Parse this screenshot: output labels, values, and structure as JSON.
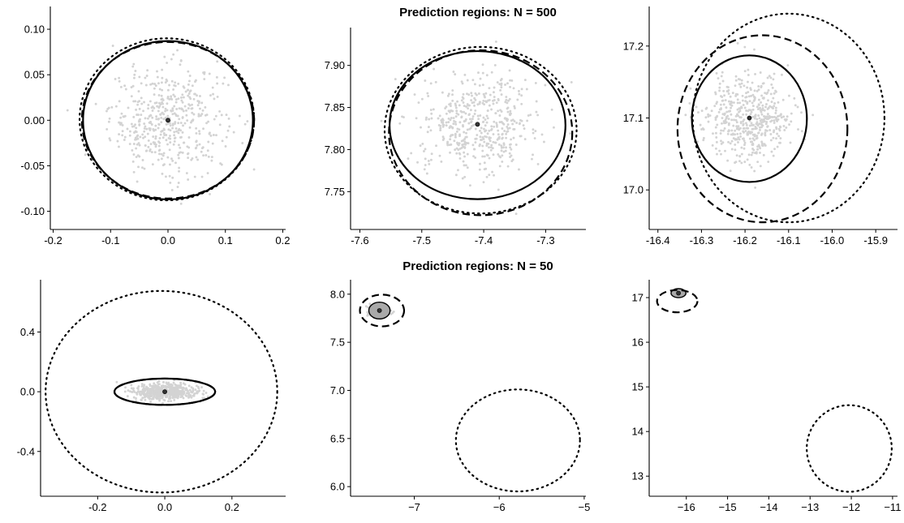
{
  "figure": {
    "background": "#ffffff",
    "point_color": "#d3d3d3",
    "center_color": "#333333",
    "line_color": "#000000"
  },
  "chart_data": [
    {
      "type": "scatter",
      "row": "N = 500",
      "title": "",
      "xlim": [
        -0.205,
        0.205
      ],
      "ylim": [
        -0.12,
        0.125
      ],
      "xticks": [
        -0.2,
        -0.1,
        0.0,
        0.1,
        0.2
      ],
      "xtick_labels": [
        "-0.2",
        "-0.1",
        "0.0",
        "0.1",
        "0.2"
      ],
      "yticks": [
        -0.1,
        -0.05,
        0.0,
        0.05,
        0.1
      ],
      "ytick_labels": [
        "-0.10",
        "-0.05",
        "0.00",
        "0.05",
        "0.10"
      ],
      "points": {
        "center": [
          0.0,
          0.0
        ],
        "sd": [
          0.05,
          0.03
        ],
        "n": 500,
        "color": "#d3d3d3"
      },
      "center": [
        0.0,
        0.0
      ],
      "regions": [
        {
          "style": "solid",
          "cx": 0.0,
          "cy": 0.0,
          "rx": 0.148,
          "ry": 0.087
        },
        {
          "style": "dashed",
          "cx": 0.0,
          "cy": 0.0,
          "rx": 0.15,
          "ry": 0.086
        },
        {
          "style": "dotted",
          "cx": -0.002,
          "cy": 0.001,
          "rx": 0.152,
          "ry": 0.089
        }
      ]
    },
    {
      "type": "scatter",
      "row": "N = 500",
      "title": "Prediction regions: N = 500",
      "xlim": [
        -7.615,
        -7.235
      ],
      "ylim": [
        7.705,
        7.945
      ],
      "xticks": [
        -7.6,
        -7.5,
        -7.4,
        -7.3
      ],
      "xtick_labels": [
        "-7.6",
        "-7.5",
        "-7.4",
        "-7.3"
      ],
      "yticks": [
        7.75,
        7.8,
        7.85,
        7.9
      ],
      "ytick_labels": [
        "7.75",
        "7.80",
        "7.85",
        "7.90"
      ],
      "points": {
        "center": [
          -7.41,
          7.83
        ],
        "sd": [
          0.05,
          0.03
        ],
        "n": 500,
        "color": "#d3d3d3"
      },
      "center": [
        -7.41,
        7.83
      ],
      "regions": [
        {
          "style": "solid",
          "cx": -7.41,
          "cy": 7.829,
          "rx": 0.142,
          "ry": 0.088
        },
        {
          "style": "dashed",
          "cx": -7.405,
          "cy": 7.82,
          "rx": 0.148,
          "ry": 0.098
        },
        {
          "style": "dotted",
          "cx": -7.405,
          "cy": 7.823,
          "rx": 0.155,
          "ry": 0.099
        }
      ]
    },
    {
      "type": "scatter",
      "row": "N = 500",
      "title": "",
      "xlim": [
        -16.42,
        -15.85
      ],
      "ylim": [
        16.945,
        17.255
      ],
      "xticks": [
        -16.4,
        -16.3,
        -16.2,
        -16.1,
        -16.0,
        -15.9
      ],
      "xtick_labels": [
        "-16.4",
        "-16.3",
        "-16.2",
        "-16.1",
        "-16.0",
        "-15.9"
      ],
      "yticks": [
        17.0,
        17.1,
        17.2
      ],
      "ytick_labels": [
        "17.0",
        "17.1",
        "17.2"
      ],
      "points": {
        "center": [
          -16.19,
          17.1
        ],
        "sd": [
          0.05,
          0.03
        ],
        "n": 500,
        "color": "#d3d3d3"
      },
      "center": [
        -16.19,
        17.1
      ],
      "regions": [
        {
          "style": "solid",
          "cx": -16.19,
          "cy": 17.099,
          "rx": 0.132,
          "ry": 0.088
        },
        {
          "style": "dashed",
          "cx": -16.16,
          "cy": 17.085,
          "rx": 0.195,
          "ry": 0.13
        },
        {
          "style": "dotted",
          "cx": -16.1,
          "cy": 17.1,
          "rx": 0.22,
          "ry": 0.145
        }
      ]
    },
    {
      "type": "scatter",
      "row": "N = 50",
      "title": "",
      "xlim": [
        -0.37,
        0.36
      ],
      "ylim": [
        -0.7,
        0.75
      ],
      "xticks": [
        -0.2,
        0.0,
        0.2
      ],
      "xtick_labels": [
        "-0.2",
        "0.0",
        "0.2"
      ],
      "yticks": [
        -0.4,
        0.0,
        0.4
      ],
      "ytick_labels": [
        "-0.4",
        "0.0",
        "0.4"
      ],
      "points": {
        "center": [
          0.0,
          0.0
        ],
        "sd": [
          0.05,
          0.03
        ],
        "n": 500,
        "color": "#d3d3d3"
      },
      "center": [
        0.0,
        0.0
      ],
      "regions": [
        {
          "style": "solid",
          "cx": 0.0,
          "cy": 0.0,
          "rx": 0.15,
          "ry": 0.088
        },
        {
          "style": "dashed",
          "cx": 0.0,
          "cy": 0.0,
          "rx": 0.15,
          "ry": 0.088
        },
        {
          "style": "dotted",
          "cx": -0.01,
          "cy": 0.0,
          "rx": 0.345,
          "ry": 0.675
        }
      ]
    },
    {
      "type": "scatter",
      "row": "N = 50",
      "title": "Prediction regions: N = 50",
      "xlim": [
        -7.75,
        -4.98
      ],
      "ylim": [
        5.9,
        8.15
      ],
      "xticks": [
        -7,
        -6,
        -5
      ],
      "xtick_labels": [
        "−7",
        "−6",
        "−5"
      ],
      "yticks": [
        6.0,
        6.5,
        7.0,
        7.5,
        8.0
      ],
      "ytick_labels": [
        "6.0",
        "6.5",
        "7.0",
        "7.5",
        "8.0"
      ],
      "points": {
        "center": [
          -7.41,
          7.83
        ],
        "sd": [
          0.05,
          0.03
        ],
        "n": 500,
        "color": "#d3d3d3"
      },
      "center": [
        -7.41,
        7.83
      ],
      "regions": [
        {
          "style": "filled",
          "cx": -7.41,
          "cy": 7.83,
          "rx": 0.125,
          "ry": 0.087
        },
        {
          "style": "dashed",
          "cx": -7.38,
          "cy": 7.83,
          "rx": 0.26,
          "ry": 0.165
        },
        {
          "style": "dotted",
          "cx": -5.78,
          "cy": 6.48,
          "rx": 0.73,
          "ry": 0.53
        }
      ]
    },
    {
      "type": "scatter",
      "row": "N = 50",
      "title": "",
      "xlim": [
        -16.9,
        -10.88
      ],
      "ylim": [
        12.55,
        17.4
      ],
      "xticks": [
        -16,
        -15,
        -14,
        -13,
        -12,
        -11
      ],
      "xtick_labels": [
        "−16",
        "−15",
        "−14",
        "−13",
        "−12",
        "−11"
      ],
      "yticks": [
        13,
        14,
        15,
        16,
        17
      ],
      "ytick_labels": [
        "13",
        "14",
        "15",
        "16",
        "17"
      ],
      "points": {
        "center": [
          -16.19,
          17.1
        ],
        "sd": [
          0.05,
          0.03
        ],
        "n": 500,
        "color": "#d3d3d3"
      },
      "center": [
        -16.19,
        17.1
      ],
      "regions": [
        {
          "style": "filled",
          "cx": -16.19,
          "cy": 17.1,
          "rx": 0.18,
          "ry": 0.1
        },
        {
          "style": "dashed",
          "cx": -16.22,
          "cy": 16.92,
          "rx": 0.49,
          "ry": 0.25
        },
        {
          "style": "dotted",
          "cx": -12.05,
          "cy": 13.62,
          "rx": 1.03,
          "ry": 0.97
        }
      ]
    }
  ]
}
